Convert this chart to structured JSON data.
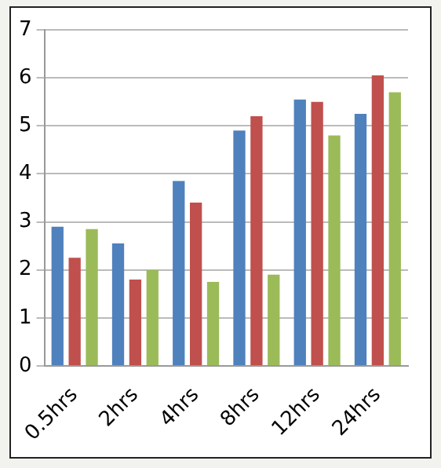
{
  "chart_data": {
    "type": "bar",
    "categories": [
      "0.5hrs",
      "2hrs",
      "4hrs",
      "8hrs",
      "12hrs",
      "24hrs"
    ],
    "series": [
      {
        "color": "#4f81bd",
        "values": [
          2.9,
          2.55,
          3.85,
          4.9,
          5.55,
          5.25
        ]
      },
      {
        "color": "#c0504d",
        "values": [
          2.25,
          1.8,
          3.4,
          5.2,
          5.5,
          6.05
        ]
      },
      {
        "color": "#9bbb59",
        "values": [
          2.85,
          2.0,
          1.75,
          1.9,
          4.8,
          5.7
        ]
      }
    ],
    "ylim": [
      0,
      7
    ],
    "yticks": [
      0,
      1,
      2,
      3,
      4,
      5,
      6,
      7
    ],
    "grid": "y",
    "legend": false
  }
}
